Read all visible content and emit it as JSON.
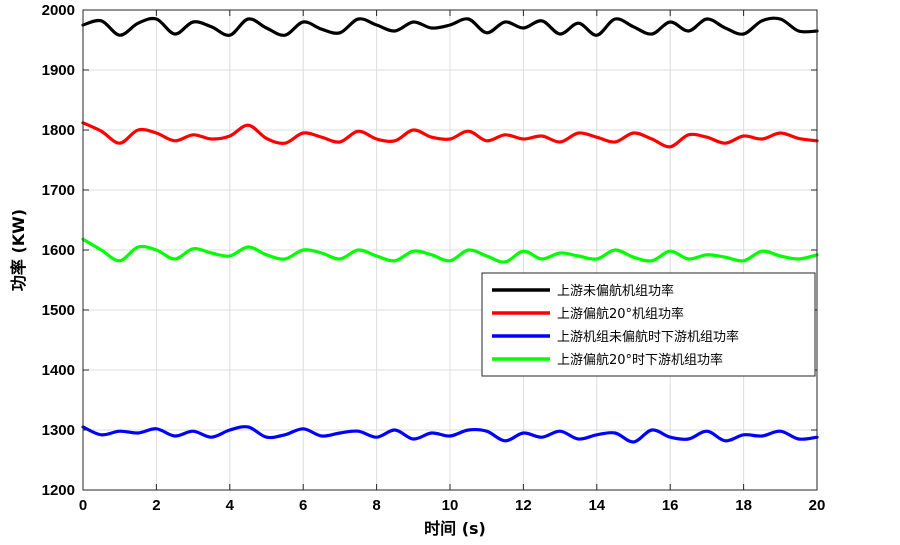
{
  "chart_data": {
    "type": "line",
    "xlabel": "时间 (s)",
    "ylabel": "功率 (KW)",
    "xlim": [
      0,
      20
    ],
    "ylim": [
      1200,
      2000
    ],
    "xticks": [
      0,
      2,
      4,
      6,
      8,
      10,
      12,
      14,
      16,
      18,
      20
    ],
    "yticks": [
      1200,
      1300,
      1400,
      1500,
      1600,
      1700,
      1800,
      1900,
      2000
    ],
    "grid": true,
    "legend_position": "right-middle",
    "series": [
      {
        "name": "上游未偏航机组功率",
        "color": "#000000",
        "x": [
          0,
          0.5,
          1,
          1.5,
          2,
          2.5,
          3,
          3.5,
          4,
          4.5,
          5,
          5.5,
          6,
          6.5,
          7,
          7.5,
          8,
          8.5,
          9,
          9.5,
          10,
          10.5,
          11,
          11.5,
          12,
          12.5,
          13,
          13.5,
          14,
          14.5,
          15,
          15.5,
          16,
          16.5,
          17,
          17.5,
          18,
          18.5,
          19,
          19.5,
          20
        ],
        "y": [
          1975,
          1982,
          1958,
          1978,
          1985,
          1960,
          1980,
          1972,
          1958,
          1985,
          1970,
          1958,
          1980,
          1968,
          1962,
          1985,
          1975,
          1965,
          1980,
          1970,
          1975,
          1985,
          1962,
          1980,
          1970,
          1982,
          1960,
          1978,
          1958,
          1985,
          1972,
          1960,
          1980,
          1965,
          1985,
          1970,
          1960,
          1982,
          1985,
          1965,
          1965
        ]
      },
      {
        "name": "上游偏航20°机组功率",
        "color": "#ff0000",
        "x": [
          0,
          0.5,
          1,
          1.5,
          2,
          2.5,
          3,
          3.5,
          4,
          4.5,
          5,
          5.5,
          6,
          6.5,
          7,
          7.5,
          8,
          8.5,
          9,
          9.5,
          10,
          10.5,
          11,
          11.5,
          12,
          12.5,
          13,
          13.5,
          14,
          14.5,
          15,
          15.5,
          16,
          16.5,
          17,
          17.5,
          18,
          18.5,
          19,
          19.5,
          20
        ],
        "y": [
          1812,
          1798,
          1778,
          1800,
          1795,
          1782,
          1792,
          1785,
          1790,
          1808,
          1786,
          1778,
          1795,
          1788,
          1780,
          1798,
          1785,
          1782,
          1800,
          1788,
          1785,
          1798,
          1782,
          1792,
          1785,
          1790,
          1780,
          1795,
          1788,
          1780,
          1795,
          1785,
          1772,
          1792,
          1788,
          1778,
          1790,
          1785,
          1795,
          1786,
          1782
        ]
      },
      {
        "name": "上游机组未偏航时下游机组功率",
        "color": "#0000ff",
        "x": [
          0,
          0.5,
          1,
          1.5,
          2,
          2.5,
          3,
          3.5,
          4,
          4.5,
          5,
          5.5,
          6,
          6.5,
          7,
          7.5,
          8,
          8.5,
          9,
          9.5,
          10,
          10.5,
          11,
          11.5,
          12,
          12.5,
          13,
          13.5,
          14,
          14.5,
          15,
          15.5,
          16,
          16.5,
          17,
          17.5,
          18,
          18.5,
          19,
          19.5,
          20
        ],
        "y": [
          1305,
          1292,
          1298,
          1295,
          1302,
          1290,
          1298,
          1288,
          1300,
          1305,
          1288,
          1292,
          1302,
          1290,
          1295,
          1298,
          1288,
          1300,
          1285,
          1295,
          1290,
          1300,
          1298,
          1282,
          1295,
          1288,
          1298,
          1285,
          1292,
          1295,
          1280,
          1300,
          1288,
          1285,
          1298,
          1282,
          1292,
          1290,
          1298,
          1285,
          1288
        ]
      },
      {
        "name": "上游偏航20°时下游机组功率",
        "color": "#00ff00",
        "x": [
          0,
          0.5,
          1,
          1.5,
          2,
          2.5,
          3,
          3.5,
          4,
          4.5,
          5,
          5.5,
          6,
          6.5,
          7,
          7.5,
          8,
          8.5,
          9,
          9.5,
          10,
          10.5,
          11,
          11.5,
          12,
          12.5,
          13,
          13.5,
          14,
          14.5,
          15,
          15.5,
          16,
          16.5,
          17,
          17.5,
          18,
          18.5,
          19,
          19.5,
          20
        ],
        "y": [
          1618,
          1600,
          1582,
          1605,
          1600,
          1585,
          1602,
          1595,
          1590,
          1605,
          1592,
          1585,
          1600,
          1595,
          1585,
          1600,
          1590,
          1582,
          1598,
          1592,
          1582,
          1600,
          1590,
          1580,
          1598,
          1585,
          1595,
          1590,
          1585,
          1600,
          1588,
          1582,
          1598,
          1585,
          1592,
          1588,
          1582,
          1598,
          1590,
          1585,
          1592
        ]
      }
    ]
  }
}
